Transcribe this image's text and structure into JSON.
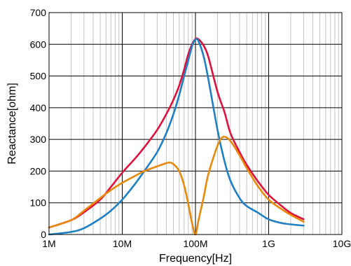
{
  "chart_data": {
    "type": "line",
    "title": "",
    "xlabel": "Frequency[Hz]",
    "ylabel": "Reactance[ohm]",
    "x_scale": "log",
    "xlim": [
      1000000,
      10000000000
    ],
    "ylim": [
      0,
      700
    ],
    "x_ticks": [
      {
        "value": 1000000,
        "label": "1M"
      },
      {
        "value": 10000000,
        "label": "10M"
      },
      {
        "value": 100000000,
        "label": "100M"
      },
      {
        "value": 1000000000,
        "label": "1G"
      },
      {
        "value": 10000000000,
        "label": "10G"
      }
    ],
    "y_ticks": [
      {
        "value": 0,
        "label": "0"
      },
      {
        "value": 100,
        "label": "100"
      },
      {
        "value": 200,
        "label": "200"
      },
      {
        "value": 300,
        "label": "300"
      },
      {
        "value": 400,
        "label": "400"
      },
      {
        "value": 500,
        "label": "500"
      },
      {
        "value": 600,
        "label": "600"
      },
      {
        "value": 700,
        "label": "700"
      }
    ],
    "grid": true,
    "legend": "none",
    "series": [
      {
        "color": "#e0103c",
        "points": [
          [
            1000000,
            22
          ],
          [
            2000000,
            45
          ],
          [
            3000000,
            70
          ],
          [
            5000000,
            110
          ],
          [
            7000000,
            150
          ],
          [
            10000000,
            195
          ],
          [
            15000000,
            240
          ],
          [
            20000000,
            275
          ],
          [
            30000000,
            330
          ],
          [
            40000000,
            380
          ],
          [
            50000000,
            425
          ],
          [
            60000000,
            470
          ],
          [
            70000000,
            520
          ],
          [
            80000000,
            570
          ],
          [
            90000000,
            600
          ],
          [
            100000000,
            617
          ],
          [
            110000000,
            616
          ],
          [
            130000000,
            595
          ],
          [
            150000000,
            560
          ],
          [
            200000000,
            450
          ],
          [
            250000000,
            385
          ],
          [
            300000000,
            320
          ],
          [
            400000000,
            260
          ],
          [
            500000000,
            220
          ],
          [
            700000000,
            170
          ],
          [
            1000000000,
            125
          ],
          [
            1500000000,
            90
          ],
          [
            2000000000,
            68
          ],
          [
            3000000000,
            48
          ]
        ]
      },
      {
        "color": "#1f7fc4",
        "points": [
          [
            1000000,
            0
          ],
          [
            2000000,
            8
          ],
          [
            3000000,
            20
          ],
          [
            5000000,
            50
          ],
          [
            7000000,
            75
          ],
          [
            10000000,
            110
          ],
          [
            15000000,
            160
          ],
          [
            20000000,
            200
          ],
          [
            30000000,
            260
          ],
          [
            40000000,
            320
          ],
          [
            50000000,
            380
          ],
          [
            60000000,
            440
          ],
          [
            70000000,
            500
          ],
          [
            80000000,
            550
          ],
          [
            90000000,
            595
          ],
          [
            100000000,
            615
          ],
          [
            110000000,
            610
          ],
          [
            130000000,
            560
          ],
          [
            150000000,
            490
          ],
          [
            200000000,
            330
          ],
          [
            250000000,
            230
          ],
          [
            300000000,
            170
          ],
          [
            400000000,
            115
          ],
          [
            500000000,
            90
          ],
          [
            700000000,
            70
          ],
          [
            1000000000,
            48
          ],
          [
            1500000000,
            36
          ],
          [
            2000000000,
            32
          ],
          [
            3000000000,
            28
          ]
        ]
      },
      {
        "color": "#e8890c",
        "points": [
          [
            1000000,
            22
          ],
          [
            2000000,
            45
          ],
          [
            3000000,
            75
          ],
          [
            5000000,
            115
          ],
          [
            7000000,
            140
          ],
          [
            10000000,
            163
          ],
          [
            15000000,
            185
          ],
          [
            20000000,
            200
          ],
          [
            30000000,
            215
          ],
          [
            40000000,
            225
          ],
          [
            45000000,
            227
          ],
          [
            50000000,
            222
          ],
          [
            60000000,
            200
          ],
          [
            70000000,
            155
          ],
          [
            80000000,
            95
          ],
          [
            90000000,
            35
          ],
          [
            100000000,
            0
          ],
          [
            110000000,
            45
          ],
          [
            130000000,
            120
          ],
          [
            150000000,
            190
          ],
          [
            200000000,
            280
          ],
          [
            240000000,
            308
          ],
          [
            300000000,
            295
          ],
          [
            400000000,
            250
          ],
          [
            500000000,
            210
          ],
          [
            700000000,
            155
          ],
          [
            1000000000,
            110
          ],
          [
            1500000000,
            80
          ],
          [
            2000000000,
            62
          ],
          [
            3000000000,
            40
          ]
        ]
      }
    ]
  }
}
